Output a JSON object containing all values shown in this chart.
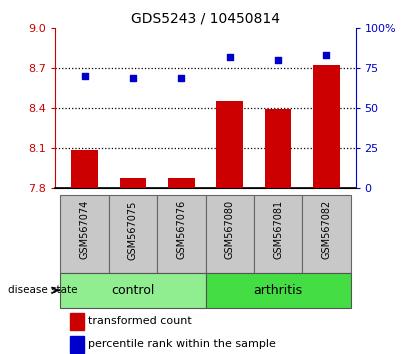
{
  "title": "GDS5243 / 10450814",
  "samples": [
    "GSM567074",
    "GSM567075",
    "GSM567076",
    "GSM567080",
    "GSM567081",
    "GSM567082"
  ],
  "transformed_count": [
    8.08,
    7.87,
    7.87,
    8.45,
    8.39,
    8.72
  ],
  "percentile_rank": [
    70,
    69,
    69,
    82,
    80,
    83
  ],
  "ylim_left": [
    7.8,
    9.0
  ],
  "ylim_right": [
    0,
    100
  ],
  "yticks_left": [
    7.8,
    8.1,
    8.4,
    8.7,
    9.0
  ],
  "yticks_right": [
    0,
    25,
    50,
    75,
    100
  ],
  "ytick_labels_right": [
    "0",
    "25",
    "50",
    "75",
    "100%"
  ],
  "bar_color": "#cc0000",
  "scatter_color": "#0000cc",
  "groups": [
    {
      "label": "control",
      "indices": [
        0,
        1,
        2
      ],
      "color": "#90ee90"
    },
    {
      "label": "arthritis",
      "indices": [
        3,
        4,
        5
      ],
      "color": "#44dd44"
    }
  ],
  "disease_state_label": "disease state",
  "legend_bar_label": "transformed count",
  "legend_scatter_label": "percentile rank within the sample",
  "grid_yticks": [
    8.1,
    8.4,
    8.7
  ],
  "bar_bottom": 7.8,
  "sample_area_color": "#c8c8c8",
  "tick_color_left": "#cc0000",
  "tick_color_right": "#0000cc"
}
